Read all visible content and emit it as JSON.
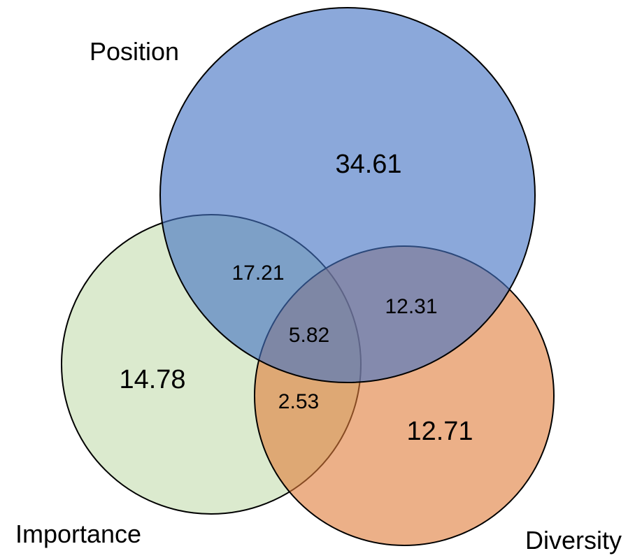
{
  "sets": {
    "position": {
      "label": "Position",
      "color": "#4472C4",
      "opacity": 0.62
    },
    "importance": {
      "label": "Importance",
      "color": "#C5DDB0",
      "opacity": 0.62
    },
    "diversity": {
      "label": "Diversity",
      "color": "#E07B39",
      "opacity": 0.6
    }
  },
  "regions": {
    "position_only": "34.61",
    "importance_only": "14.78",
    "diversity_only": "12.71",
    "position_importance": "17.21",
    "position_diversity": "12.31",
    "importance_diversity": "2.53",
    "all_three": "5.82"
  },
  "outline_color": "#000000"
}
